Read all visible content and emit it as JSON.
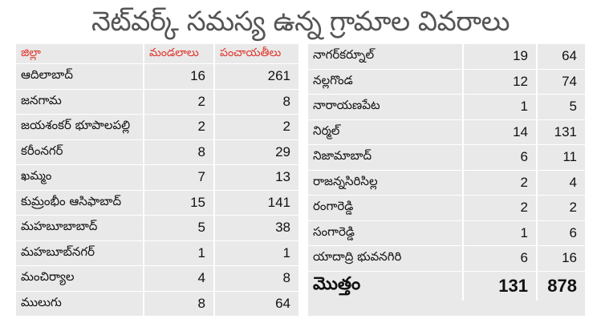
{
  "title": "నెట్‌వర్క్ సమస్య ఉన్న గ్రామాల వివరాలు",
  "colors": {
    "header_text": "#e0352b",
    "panel_bg": "#e9e9e9",
    "title_text": "#555555"
  },
  "table": {
    "headers": {
      "district": "జిల్లా",
      "mandals": "మండలాలు",
      "panchayats": "పంచాయతీలు"
    },
    "left_rows": [
      {
        "district": "ఆదిలాబాద్",
        "mandals": "16",
        "panchayats": "261"
      },
      {
        "district": "జనగామ",
        "mandals": "2",
        "panchayats": "8"
      },
      {
        "district": "జయశంకర్ భూపాలపల్లి",
        "mandals": "2",
        "panchayats": "2"
      },
      {
        "district": "కరీంనగర్",
        "mandals": "8",
        "panchayats": "29"
      },
      {
        "district": "ఖమ్మం",
        "mandals": "7",
        "panchayats": "13"
      },
      {
        "district": "కుమ్రంభీం ఆసిఫాబాద్",
        "mandals": "15",
        "panchayats": "141"
      },
      {
        "district": "మహబూబాబాద్",
        "mandals": "5",
        "panchayats": "38"
      },
      {
        "district": "మహబూబ్‌నగర్",
        "mandals": "1",
        "panchayats": "1"
      },
      {
        "district": "మంచిర్యాల",
        "mandals": "4",
        "panchayats": "8"
      },
      {
        "district": "ములుగు",
        "mandals": "8",
        "panchayats": "64"
      }
    ],
    "right_rows": [
      {
        "district": "నాగర్‌కర్నూల్",
        "mandals": "19",
        "panchayats": "64"
      },
      {
        "district": "నల్లగొండ",
        "mandals": "12",
        "panchayats": "74"
      },
      {
        "district": "నారాయణపేట",
        "mandals": "1",
        "panchayats": "5"
      },
      {
        "district": "నిర్మల్",
        "mandals": "14",
        "panchayats": "131"
      },
      {
        "district": "నిజామాబాద్",
        "mandals": "6",
        "panchayats": "11"
      },
      {
        "district": "రాజన్నసిరిసిల్ల",
        "mandals": "2",
        "panchayats": "4"
      },
      {
        "district": "రంగారెడ్డి",
        "mandals": "2",
        "panchayats": "2"
      },
      {
        "district": "సంగారెడ్డి",
        "mandals": "1",
        "panchayats": "6"
      },
      {
        "district": "యాదాద్రి భువనగిరి",
        "mandals": "6",
        "panchayats": "16"
      }
    ],
    "total": {
      "label": "మొత్తం",
      "mandals": "131",
      "panchayats": "878"
    }
  }
}
